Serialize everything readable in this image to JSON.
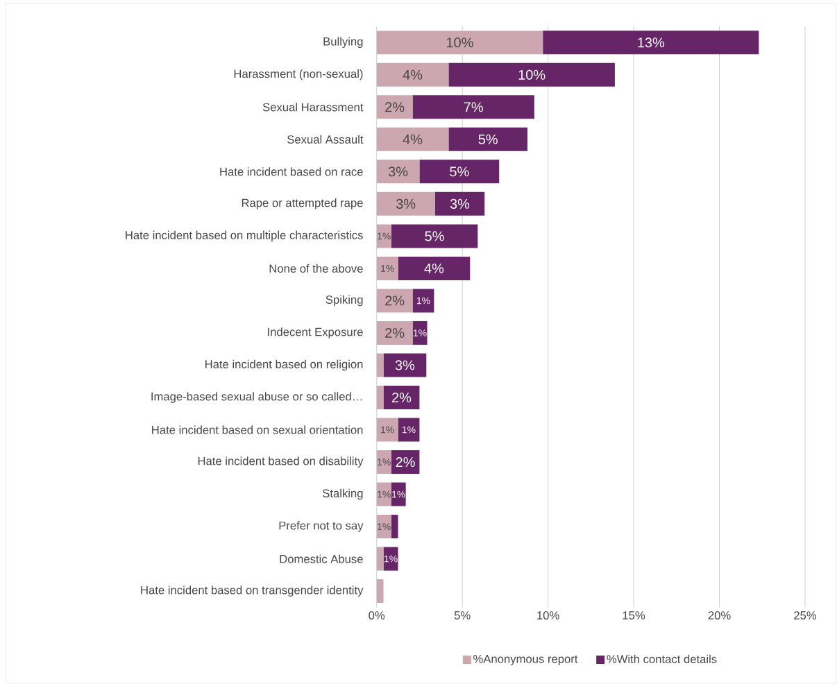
{
  "chart_data": {
    "type": "bar",
    "orientation": "horizontal",
    "stacked": true,
    "categories": [
      "Bullying",
      "Harassment (non-sexual)",
      "Sexual Harassment",
      "Sexual Assault",
      "Hate incident based on race",
      "Rape or attempted rape",
      "Hate incident based on multiple characteristics",
      "None of the above",
      "Spiking",
      "Indecent Exposure",
      "Hate incident based on religion",
      "Image-based sexual abuse or so called…",
      "Hate incident based on sexual orientation",
      "Hate incident based on disability",
      "Stalking",
      "Prefer not to say",
      "Domestic Abuse",
      "Hate incident based on transgender identity"
    ],
    "series": [
      {
        "name": "%Anonymous report",
        "color": "#cca7b0",
        "values": [
          9.7,
          4.2,
          2.1,
          4.2,
          2.5,
          3.4,
          0.85,
          1.25,
          2.1,
          2.1,
          0.4,
          0.4,
          1.25,
          0.85,
          0.85,
          0.85,
          0.4,
          0.4
        ],
        "value_labels": [
          "10%",
          "4%",
          "2%",
          "4%",
          "3%",
          "3%",
          "1%",
          "1%",
          "2%",
          "2%",
          null,
          null,
          "1%",
          "1%",
          "1%",
          "1%",
          null,
          null
        ]
      },
      {
        "name": "%With contact details",
        "color": "#662567",
        "values": [
          12.6,
          9.7,
          7.1,
          4.6,
          4.65,
          2.9,
          5.05,
          4.2,
          1.25,
          0.85,
          2.5,
          2.1,
          1.25,
          1.65,
          0.85,
          0.4,
          0.85,
          0
        ],
        "value_labels": [
          "13%",
          "10%",
          "7%",
          "5%",
          "5%",
          "3%",
          "5%",
          "4%",
          "1%",
          "1%",
          "3%",
          "2%",
          "1%",
          "2%",
          "1%",
          null,
          "1%",
          null
        ]
      }
    ],
    "xlim": [
      0,
      25
    ],
    "xticks": [
      {
        "value": 0,
        "label": "0%"
      },
      {
        "value": 5,
        "label": "5%"
      },
      {
        "value": 10,
        "label": "10%"
      },
      {
        "value": 15,
        "label": "15%"
      },
      {
        "value": 20,
        "label": "20%"
      },
      {
        "value": 25,
        "label": "25%"
      }
    ],
    "grid": "x",
    "legend": "bottom"
  }
}
